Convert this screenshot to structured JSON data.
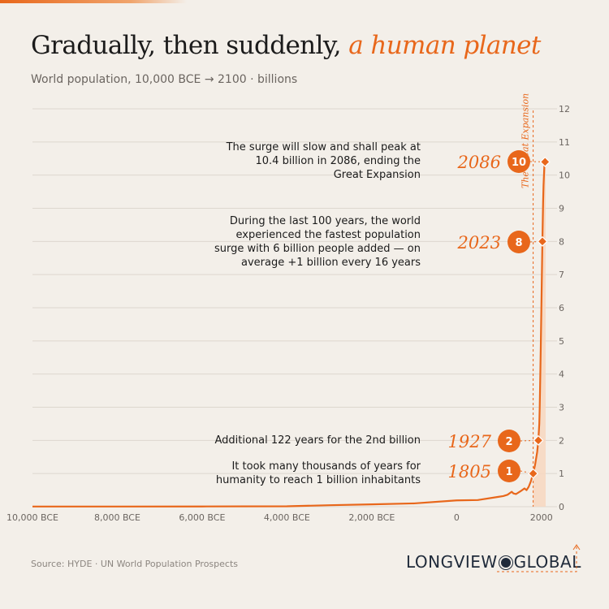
{
  "title": {
    "main": "Gradually, then suddenly,",
    "accent": "a human planet"
  },
  "subtitle": "World population, 10,000 BCE → 2100 · billions",
  "colors": {
    "accent": "#e8671b",
    "grid": "#ddd7cf",
    "text": "#1b1b1b",
    "muted": "#6b6560",
    "area": "#f7d7c0",
    "navy": "#1f2a3a"
  },
  "annotations": [
    {
      "id": "a10",
      "text": "The surge will slow and shall peak at 10.4 billion in 2086, ending the Great Expansion",
      "lines": [
        "The surge will slow and shall peak at",
        "10.4 billion in 2086, ending the",
        "Great Expansion"
      ],
      "year": "2086",
      "badge": "10"
    },
    {
      "id": "a8",
      "lines": [
        "During the last 100 years, the world",
        "experienced the fastest population",
        "surge with 6 billion people added — on",
        "average +1 billion every 16 years"
      ],
      "year": "2023",
      "badge": "8"
    },
    {
      "id": "a2",
      "lines": [
        "Additional 122 years for the 2nd billion"
      ],
      "year": "1927",
      "badge": "2"
    },
    {
      "id": "a1",
      "lines": [
        "It took many thousands of years for",
        "humanity to reach 1 billion inhabitants"
      ],
      "year": "1805",
      "badge": "1"
    }
  ],
  "expansion_label": "The Great Expansion",
  "source": "Source: HYDE · UN World Population Prospects",
  "logo": {
    "left": "LONGVIEW",
    "right": "GLOBAL"
  },
  "chart_data": {
    "type": "area",
    "title": "Gradually, then suddenly, a human planet",
    "xlabel": "",
    "ylabel": "",
    "xlim": [
      -10000,
      2100
    ],
    "ylim": [
      0,
      12
    ],
    "x_ticks": [
      -10000,
      -8000,
      -6000,
      -4000,
      -2000,
      0,
      2000
    ],
    "x_tick_labels": [
      "10,000 BCE",
      "8,000 BCE",
      "6,000 BCE",
      "4,000 BCE",
      "2,000 BCE",
      "0",
      "2000"
    ],
    "y_ticks": [
      0,
      1,
      2,
      3,
      4,
      5,
      6,
      7,
      8,
      9,
      10,
      11,
      12
    ],
    "y_tick_labels": [
      "0",
      "1",
      "2",
      "3",
      "4",
      "5",
      "6",
      "7",
      "8",
      "9",
      "10",
      "11",
      "12"
    ],
    "grid": true,
    "y_axis_side": "right",
    "series": [
      {
        "x": [
          -10000,
          -8000,
          -6000,
          -4000,
          -3000,
          -2000,
          -1000,
          0,
          500,
          1000,
          1100,
          1200,
          1300,
          1340,
          1400,
          1500,
          1600,
          1650,
          1700,
          1750,
          1805,
          1850,
          1900,
          1927,
          1950,
          1960,
          1974,
          1987,
          1999,
          2011,
          2023,
          2030,
          2040,
          2050,
          2060,
          2070,
          2080,
          2086,
          2100
        ],
        "y": [
          0.004,
          0.005,
          0.007,
          0.012,
          0.045,
          0.07,
          0.1,
          0.19,
          0.2,
          0.3,
          0.32,
          0.36,
          0.45,
          0.4,
          0.38,
          0.46,
          0.55,
          0.5,
          0.6,
          0.76,
          1.0,
          1.26,
          1.65,
          2.0,
          2.5,
          3.0,
          4.0,
          5.0,
          6.0,
          7.0,
          8.0,
          8.5,
          9.2,
          9.7,
          10.0,
          10.3,
          10.4,
          10.4,
          10.3
        ]
      }
    ],
    "highlights": [
      {
        "year": 1805,
        "value": 1
      },
      {
        "year": 1927,
        "value": 2
      },
      {
        "year": 2023,
        "value": 8
      },
      {
        "year": 2086,
        "value": 10.4
      }
    ],
    "reference_line": {
      "year": 1805
    }
  }
}
